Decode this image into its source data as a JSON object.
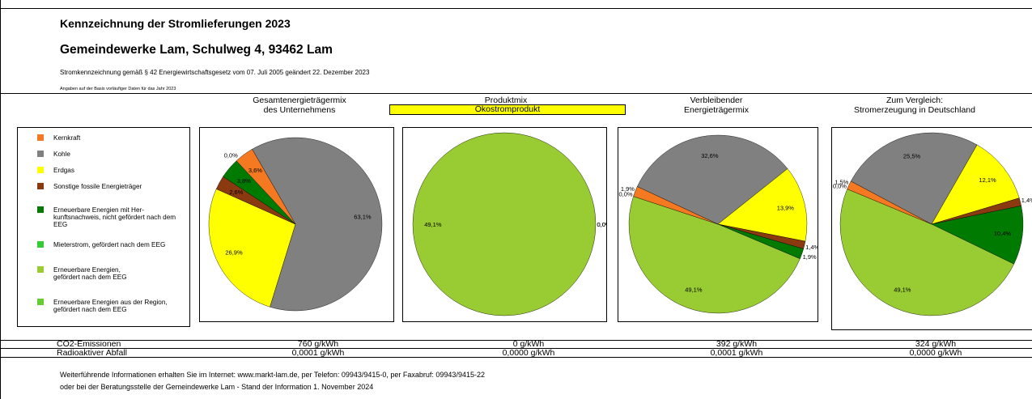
{
  "header": {
    "title": "Kennzeichnung der Stromlieferungen 2023",
    "company": "Gemeindewerke Lam, Schulweg 4, 93462 Lam",
    "law_note": "Stromkennzeichnung gemäß § 42 Energiewirtschaftsgesetz vom 07. Juli 2005 geändert 22. Dezember 2023",
    "basis_note": "Angaben auf der Basis vorläufiger Daten für das Jahr 2023"
  },
  "columns": {
    "c1": [
      "Gesamtenergieträgermix",
      "des Unternehmens"
    ],
    "c2_top": "Produktmix",
    "c2_box": "Ökostromprodukt",
    "c3": [
      "Verbleibender",
      "Energieträgermix"
    ],
    "c4": [
      "Zum Vergleich:",
      "Stromerzeugung in Deutschland"
    ]
  },
  "legend": [
    {
      "label": "Kernkraft",
      "color": "#f47920"
    },
    {
      "label": "Kohle",
      "color": "#808080"
    },
    {
      "label": "Erdgas",
      "color": "#ffff00"
    },
    {
      "label": "Sonstige fossile Energieträger",
      "color": "#8b3a0f"
    },
    {
      "label": "Erneuerbare Energien mit Her-kunftsnachweis, nicht gefördert nach dem EEG",
      "color": "#007a00"
    },
    {
      "label": "Mieterstrom, gefördert nach dem EEG",
      "color": "#33cc33"
    },
    {
      "label": "Erneuerbare Energien, gefördert nach dem EEG",
      "color": "#99cc33"
    },
    {
      "label": "Erneuerbare Energien aus der Region, gefördert nach dem EEG",
      "color": "#66cc33"
    }
  ],
  "chart_data": [
    {
      "type": "pie",
      "title": "Gesamtenergieträgermix des Unternehmens",
      "slices": [
        {
          "label": "Kohle",
          "value": 63.1,
          "display": "63,1%",
          "color": "#808080"
        },
        {
          "label": "Erdgas",
          "value": 26.9,
          "display": "26,9%",
          "color": "#ffff00"
        },
        {
          "label": "Sonstige fossile Energieträger",
          "value": 2.6,
          "display": "2,6%",
          "color": "#8b3a0f"
        },
        {
          "label": "Erneuerbare Energien mit Herkunftsnachweis",
          "value": 3.8,
          "display": "3,8%",
          "color": "#007a00"
        },
        {
          "label": "Erneuerbare Energien, gefördert nach dem EEG",
          "value": 0.0,
          "display": "0,0%",
          "color": "#99cc33"
        },
        {
          "label": "Kernkraft",
          "value": 3.6,
          "display": "3,6%",
          "color": "#f47920"
        }
      ]
    },
    {
      "type": "pie",
      "title": "Produktmix Ökostromprodukt",
      "slices": [
        {
          "label": "Erneuerbare Energien, gefördert nach dem EEG",
          "value": 49.1,
          "display": "49,1%",
          "color": "#99cc33"
        },
        {
          "label": "Kernkraft",
          "value": 0.0,
          "display": "0,0%",
          "color": "#f47920"
        },
        {
          "label": "Kohle",
          "value": 0.0,
          "display": "0,0%",
          "color": "#808080"
        }
      ]
    },
    {
      "type": "pie",
      "title": "Verbleibender Energieträgermix",
      "slices": [
        {
          "label": "Kohle",
          "value": 32.6,
          "display": "32,6%",
          "color": "#808080"
        },
        {
          "label": "Erdgas",
          "value": 13.9,
          "display": "13,9%",
          "color": "#ffff00"
        },
        {
          "label": "Sonstige fossile Energieträger",
          "value": 1.4,
          "display": "1,4%",
          "color": "#8b3a0f"
        },
        {
          "label": "Erneuerbare Energien mit Herkunftsnachweis",
          "value": 1.9,
          "display": "1,9%",
          "color": "#007a00"
        },
        {
          "label": "Erneuerbare Energien, gefördert nach dem EEG",
          "value": 49.1,
          "display": "49,1%",
          "color": "#99cc33"
        },
        {
          "label": "Mieterstrom",
          "value": 0.0,
          "display": "0,0%",
          "color": "#33cc33"
        },
        {
          "label": "Kernkraft",
          "value": 1.9,
          "display": "1,9%",
          "color": "#f47920"
        }
      ]
    },
    {
      "type": "pie",
      "title": "Zum Vergleich: Stromerzeugung in Deutschland",
      "slices": [
        {
          "label": "Kohle",
          "value": 25.5,
          "display": "25,5%",
          "color": "#808080"
        },
        {
          "label": "Erdgas",
          "value": 12.1,
          "display": "12,1%",
          "color": "#ffff00"
        },
        {
          "label": "Sonstige fossile Energieträger",
          "value": 1.4,
          "display": "1,4%",
          "color": "#8b3a0f"
        },
        {
          "label": "Erneuerbare Energien mit Herkunftsnachweis",
          "value": 10.4,
          "display": "10,4%",
          "color": "#007a00"
        },
        {
          "label": "Erneuerbare Energien, gefördert nach dem EEG",
          "value": 49.1,
          "display": "49,1%",
          "color": "#99cc33"
        },
        {
          "label": "Mieterstrom",
          "value": 0.0,
          "display": "0,0%",
          "color": "#33cc33"
        },
        {
          "label": "Kernkraft",
          "value": 1.5,
          "display": "1,5%",
          "color": "#f47920"
        }
      ]
    }
  ],
  "emissions": {
    "co2_label": "CO2-Emissionen",
    "waste_label": "Radioaktiver Abfall",
    "co2": [
      "760 g/kWh",
      "0 g/kWh",
      "392 g/kWh",
      "324 g/kWh"
    ],
    "waste": [
      "0,0001 g/kWh",
      "0,0000 g/kWh",
      "0,0001 g/kWh",
      "0,0000 g/kWh"
    ]
  },
  "footer": {
    "line1": "Weiterführende Informationen erhalten Sie im Internet: www.markt-lam.de, per Telefon: 09943/9415-0, per Faxabruf: 09943/9415-22",
    "line2": "oder bei der Beratungsstelle der Gemeindewerke Lam - Stand der Information 1. November 2024"
  }
}
